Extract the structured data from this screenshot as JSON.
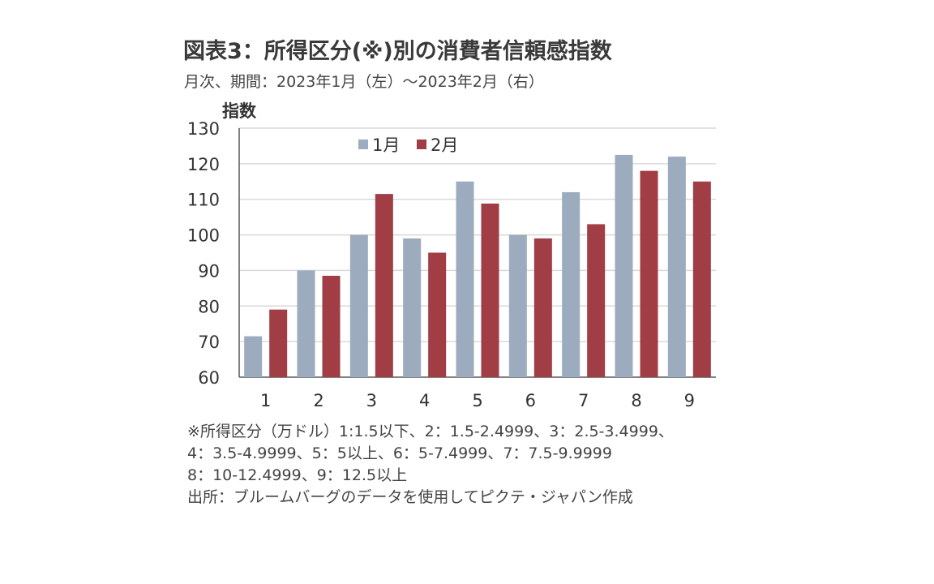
{
  "header": {
    "title": "図表3：所得区分(※)別の消費者信頼感指数",
    "subtitle": "月次、期間：2023年1月（左）～2023年2月（右）"
  },
  "notes": [
    "※所得区分（万ドル）1:1.5以下、2：1.5-2.4999、3：2.5-3.4999、",
    "4：3.5-4.9999、5：5以上、6：5-7.4999、7：7.5-9.9999",
    "8：10-12.4999、9：12.5以上",
    "出所：ブルームバーグのデータを使用してピクテ・ジャパン作成"
  ],
  "colors": {
    "jan": "#9dabbe",
    "feb": "#a03d45",
    "grid": "#d9d9d9",
    "axis": "#595959"
  },
  "chart_data": {
    "type": "bar",
    "ylabel": "指数",
    "xlabel": "",
    "ylim": [
      60,
      130
    ],
    "yticks": [
      60,
      70,
      80,
      90,
      100,
      110,
      120,
      130
    ],
    "grid": true,
    "legend_position": "top-center",
    "categories": [
      "1",
      "2",
      "3",
      "4",
      "5",
      "6",
      "7",
      "8",
      "9"
    ],
    "series": [
      {
        "name": "1月",
        "values": [
          71.5,
          90,
          100,
          99,
          115,
          100,
          112,
          122.5,
          122
        ]
      },
      {
        "name": "2月",
        "values": [
          79,
          88.5,
          111.5,
          95,
          108.8,
          99,
          103,
          118,
          115
        ]
      }
    ]
  }
}
